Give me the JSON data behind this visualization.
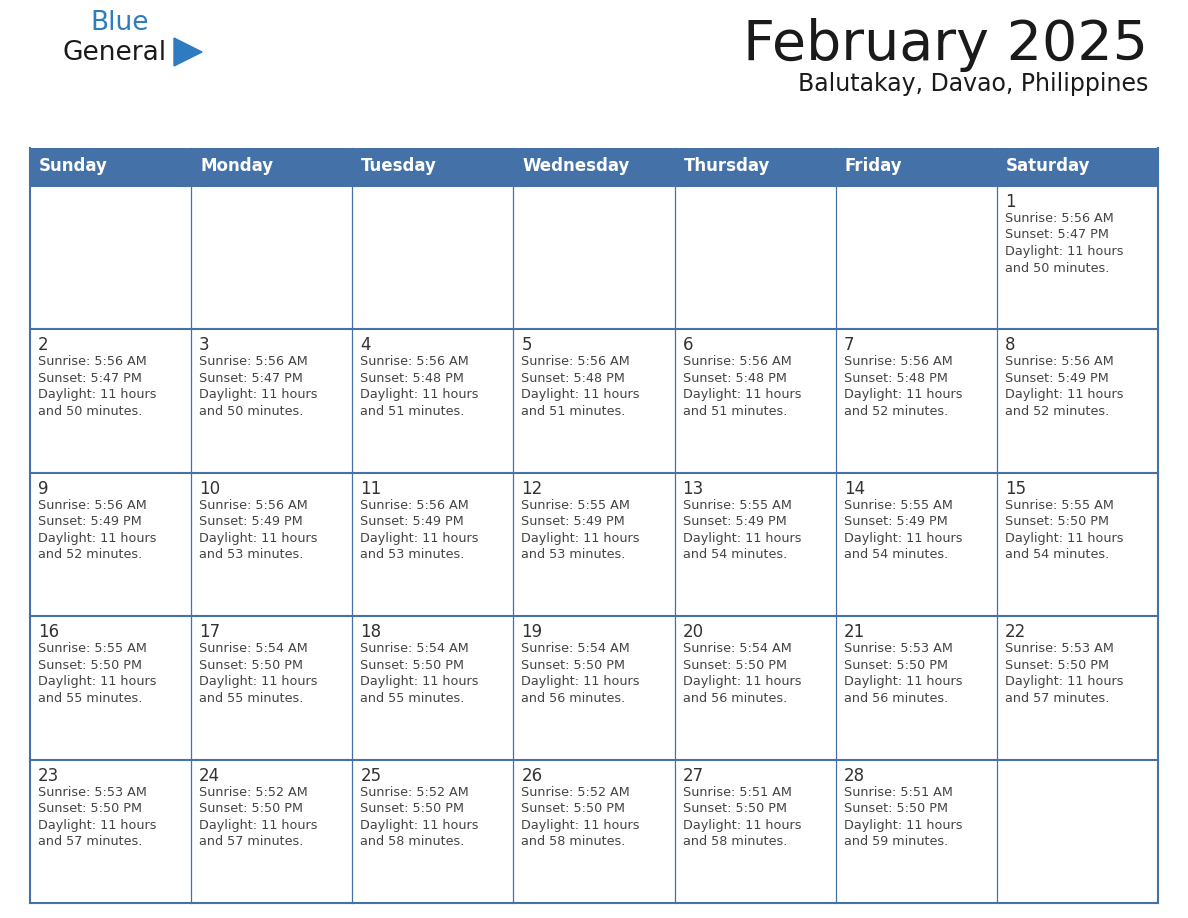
{
  "title": "February 2025",
  "subtitle": "Balutakay, Davao, Philippines",
  "days_of_week": [
    "Sunday",
    "Monday",
    "Tuesday",
    "Wednesday",
    "Thursday",
    "Friday",
    "Saturday"
  ],
  "header_bg": "#4472A8",
  "header_text": "#FFFFFF",
  "border_color": "#4472A8",
  "row_separator_color": "#4472A8",
  "text_color": "#444444",
  "day_number_color": "#333333",
  "title_color": "#1a1a1a",
  "logo_general_color": "#1a1a1a",
  "logo_blue_color": "#2E7BBF",
  "logo_triangle_color": "#2E7BBF",
  "calendar_data": [
    [
      {
        "day": null
      },
      {
        "day": null
      },
      {
        "day": null
      },
      {
        "day": null
      },
      {
        "day": null
      },
      {
        "day": null
      },
      {
        "day": 1,
        "sunrise": "5:56 AM",
        "sunset": "5:47 PM",
        "daylight": "11 hours and 50 minutes."
      }
    ],
    [
      {
        "day": 2,
        "sunrise": "5:56 AM",
        "sunset": "5:47 PM",
        "daylight": "11 hours and 50 minutes."
      },
      {
        "day": 3,
        "sunrise": "5:56 AM",
        "sunset": "5:47 PM",
        "daylight": "11 hours and 50 minutes."
      },
      {
        "day": 4,
        "sunrise": "5:56 AM",
        "sunset": "5:48 PM",
        "daylight": "11 hours and 51 minutes."
      },
      {
        "day": 5,
        "sunrise": "5:56 AM",
        "sunset": "5:48 PM",
        "daylight": "11 hours and 51 minutes."
      },
      {
        "day": 6,
        "sunrise": "5:56 AM",
        "sunset": "5:48 PM",
        "daylight": "11 hours and 51 minutes."
      },
      {
        "day": 7,
        "sunrise": "5:56 AM",
        "sunset": "5:48 PM",
        "daylight": "11 hours and 52 minutes."
      },
      {
        "day": 8,
        "sunrise": "5:56 AM",
        "sunset": "5:49 PM",
        "daylight": "11 hours and 52 minutes."
      }
    ],
    [
      {
        "day": 9,
        "sunrise": "5:56 AM",
        "sunset": "5:49 PM",
        "daylight": "11 hours and 52 minutes."
      },
      {
        "day": 10,
        "sunrise": "5:56 AM",
        "sunset": "5:49 PM",
        "daylight": "11 hours and 53 minutes."
      },
      {
        "day": 11,
        "sunrise": "5:56 AM",
        "sunset": "5:49 PM",
        "daylight": "11 hours and 53 minutes."
      },
      {
        "day": 12,
        "sunrise": "5:55 AM",
        "sunset": "5:49 PM",
        "daylight": "11 hours and 53 minutes."
      },
      {
        "day": 13,
        "sunrise": "5:55 AM",
        "sunset": "5:49 PM",
        "daylight": "11 hours and 54 minutes."
      },
      {
        "day": 14,
        "sunrise": "5:55 AM",
        "sunset": "5:49 PM",
        "daylight": "11 hours and 54 minutes."
      },
      {
        "day": 15,
        "sunrise": "5:55 AM",
        "sunset": "5:50 PM",
        "daylight": "11 hours and 54 minutes."
      }
    ],
    [
      {
        "day": 16,
        "sunrise": "5:55 AM",
        "sunset": "5:50 PM",
        "daylight": "11 hours and 55 minutes."
      },
      {
        "day": 17,
        "sunrise": "5:54 AM",
        "sunset": "5:50 PM",
        "daylight": "11 hours and 55 minutes."
      },
      {
        "day": 18,
        "sunrise": "5:54 AM",
        "sunset": "5:50 PM",
        "daylight": "11 hours and 55 minutes."
      },
      {
        "day": 19,
        "sunrise": "5:54 AM",
        "sunset": "5:50 PM",
        "daylight": "11 hours and 56 minutes."
      },
      {
        "day": 20,
        "sunrise": "5:54 AM",
        "sunset": "5:50 PM",
        "daylight": "11 hours and 56 minutes."
      },
      {
        "day": 21,
        "sunrise": "5:53 AM",
        "sunset": "5:50 PM",
        "daylight": "11 hours and 56 minutes."
      },
      {
        "day": 22,
        "sunrise": "5:53 AM",
        "sunset": "5:50 PM",
        "daylight": "11 hours and 57 minutes."
      }
    ],
    [
      {
        "day": 23,
        "sunrise": "5:53 AM",
        "sunset": "5:50 PM",
        "daylight": "11 hours and 57 minutes."
      },
      {
        "day": 24,
        "sunrise": "5:52 AM",
        "sunset": "5:50 PM",
        "daylight": "11 hours and 57 minutes."
      },
      {
        "day": 25,
        "sunrise": "5:52 AM",
        "sunset": "5:50 PM",
        "daylight": "11 hours and 58 minutes."
      },
      {
        "day": 26,
        "sunrise": "5:52 AM",
        "sunset": "5:50 PM",
        "daylight": "11 hours and 58 minutes."
      },
      {
        "day": 27,
        "sunrise": "5:51 AM",
        "sunset": "5:50 PM",
        "daylight": "11 hours and 58 minutes."
      },
      {
        "day": 28,
        "sunrise": "5:51 AM",
        "sunset": "5:50 PM",
        "daylight": "11 hours and 59 minutes."
      },
      {
        "day": null
      }
    ]
  ]
}
